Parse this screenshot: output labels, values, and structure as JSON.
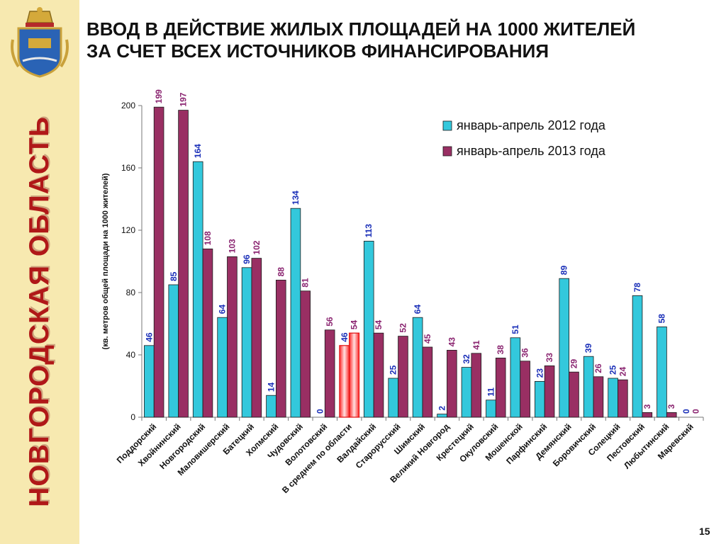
{
  "sidebar": {
    "vertical_title": "НОВГОРОДСКАЯ ОБЛАСТЬ",
    "background": "#f7e9b0",
    "title_color": "#b01818"
  },
  "slide": {
    "title_line1": "ВВОД  В ДЕЙСТВИЕ ЖИЛЫХ ПЛОЩАДЕЙ НА 1000 ЖИТЕЛЕЙ",
    "title_line2": "ЗА СЧЕТ ВСЕХ ИСТОЧНИКОВ ФИНАНСИРОВАНИЯ",
    "page_number": "15"
  },
  "chart_data": {
    "type": "bar",
    "ylabel": "(кв. метров общей площади на 1000 жителей)",
    "ylim": [
      0,
      200
    ],
    "yticks": [
      0,
      40,
      80,
      120,
      160,
      200
    ],
    "grid": false,
    "legend_position": "top-right",
    "categories": [
      "Поддорский",
      "Хвойнинский",
      "Новгородский",
      "Маловишерский",
      "Батецкий",
      "Холмский",
      "Чудовский",
      "Волотовский",
      "В среднем по области",
      "Валдайский",
      "Старорусский",
      "Шимский",
      "Великий Новгород",
      "Крестецкий",
      "Окуловский",
      "Мошенской",
      "Парфинский",
      "Демянский",
      "Боровичский",
      "Солецкий",
      "Пестовский",
      "Любытинский",
      "Маревский"
    ],
    "highlight_index": 8,
    "series": [
      {
        "name": "январь-апрель 2012 года",
        "color": "#33c8dc",
        "label_color": "#1a2fb8",
        "values": [
          46,
          85,
          164,
          64,
          96,
          14,
          134,
          0,
          46,
          113,
          25,
          64,
          2,
          32,
          11,
          51,
          23,
          89,
          39,
          25,
          78,
          58,
          0
        ]
      },
      {
        "name": "январь-апрель 2013 года",
        "color": "#992f63",
        "label_color": "#8a2470",
        "values": [
          199,
          197,
          108,
          103,
          102,
          88,
          81,
          56,
          54,
          54,
          52,
          45,
          43,
          41,
          38,
          36,
          33,
          29,
          26,
          24,
          3,
          3,
          0
        ]
      }
    ]
  }
}
